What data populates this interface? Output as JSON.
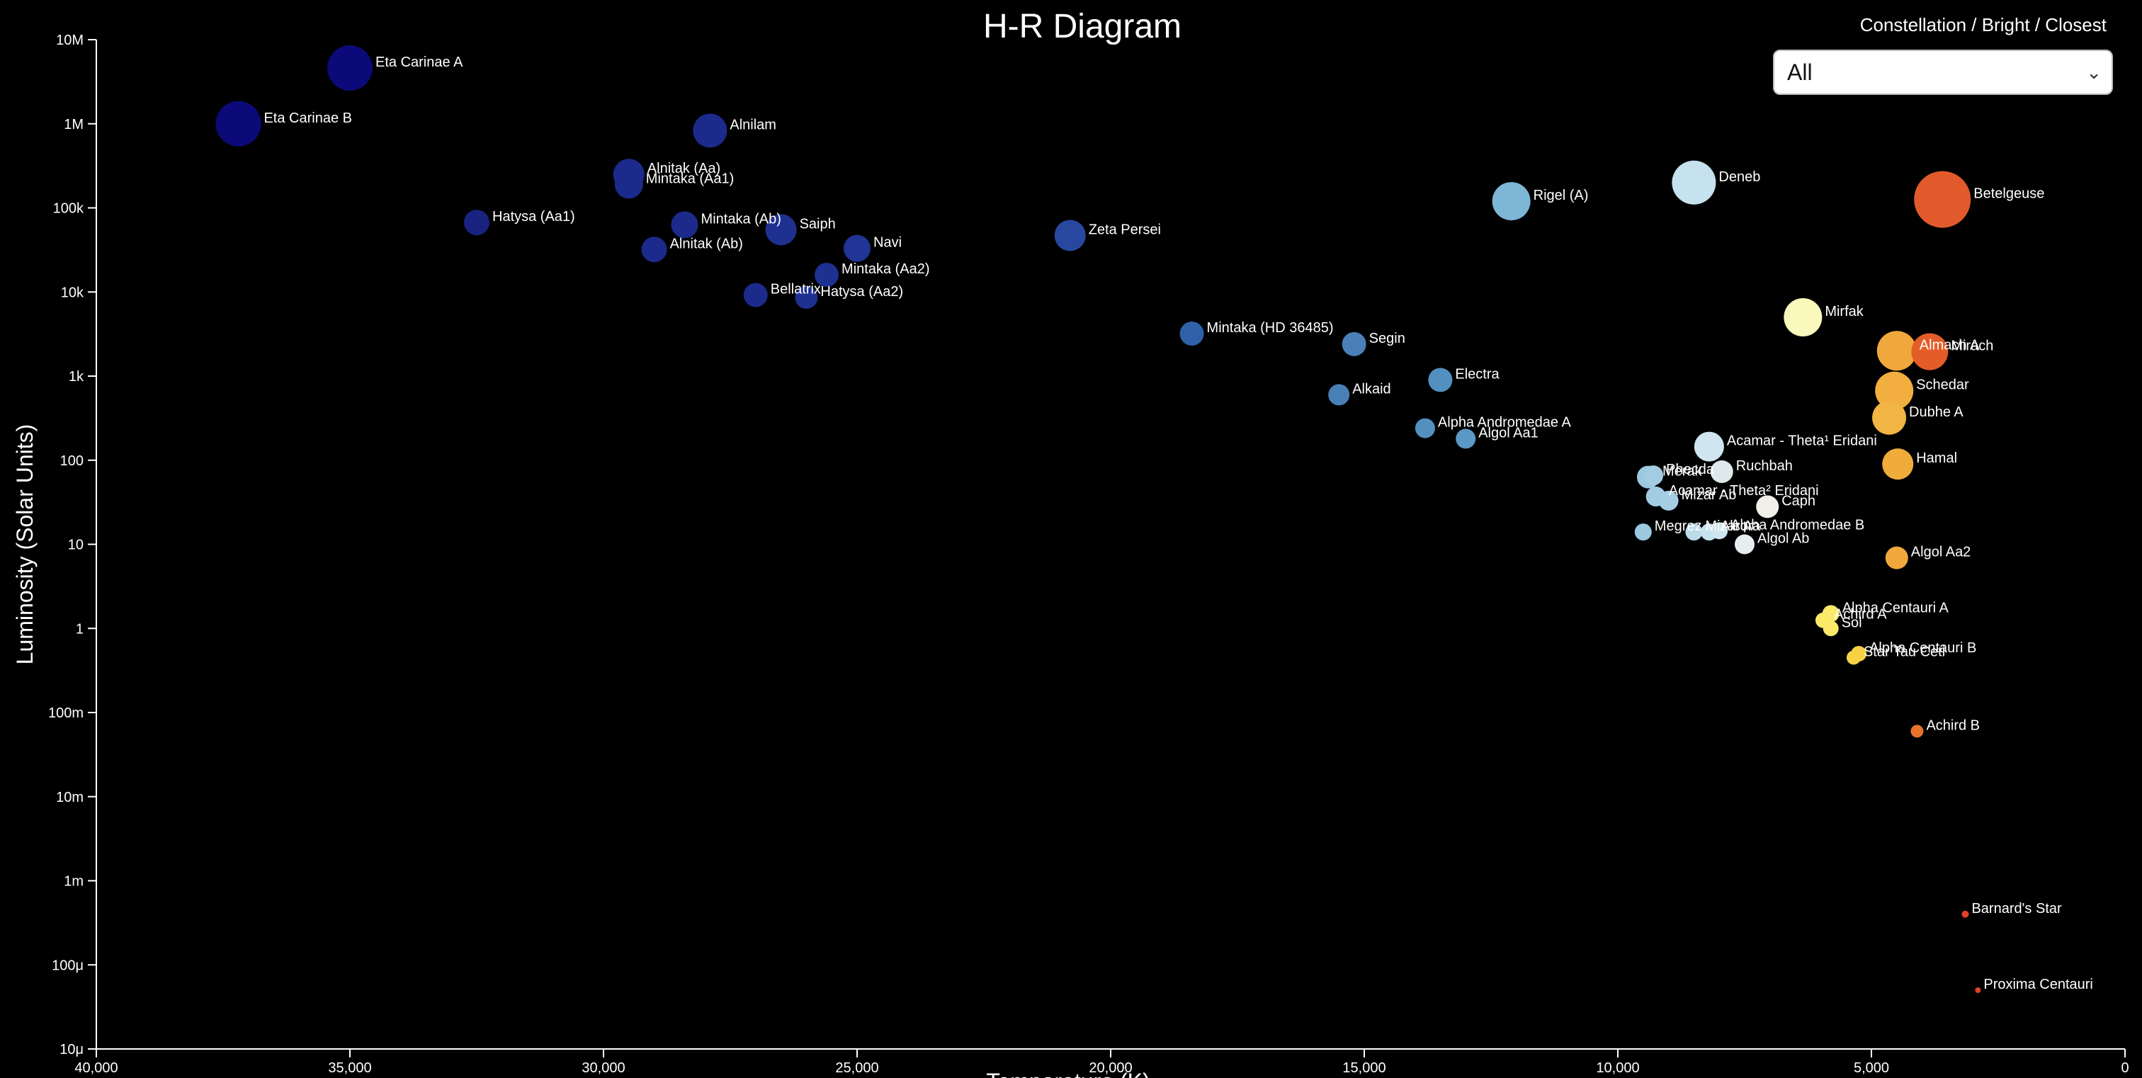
{
  "filter": {
    "label": "Constellation / Bright / Closest",
    "selected": "All"
  },
  "chart_data": {
    "type": "scatter",
    "title": "H-R Diagram",
    "xlabel": "Temperature (K)",
    "ylabel": "Luminosity (Solar Units)",
    "xlim": [
      40000,
      0
    ],
    "ylim": [
      1e-05,
      10000000
    ],
    "yscale": "log",
    "x_ticks": [
      40000,
      35000,
      30000,
      25000,
      20000,
      15000,
      10000,
      5000,
      0
    ],
    "x_tick_labels": [
      "40,000",
      "35,000",
      "30,000",
      "25,000",
      "20,000",
      "15,000",
      "10,000",
      "5,000",
      "0"
    ],
    "y_ticks": [
      1e-05,
      0.0001,
      0.001,
      0.01,
      0.1,
      1,
      10,
      100,
      1000,
      10000,
      100000,
      1000000,
      10000000
    ],
    "y_tick_labels": [
      "10μ",
      "100μ",
      "1m",
      "10m",
      "100m",
      "1",
      "10",
      "100",
      "1k",
      "10k",
      "100k",
      "1M",
      "10M"
    ],
    "grid": false,
    "legend": "none",
    "points": [
      {
        "name": "Eta Carinae A",
        "x": 35000,
        "y": 4600000,
        "size": 32,
        "color": "#0c0a78"
      },
      {
        "name": "Eta Carinae B",
        "x": 37200,
        "y": 1000000,
        "size": 32,
        "color": "#0c0a78"
      },
      {
        "name": "Alnilam",
        "x": 27900,
        "y": 830000,
        "size": 24,
        "color": "#1c2a8c"
      },
      {
        "name": "Alnitak (Aa)",
        "x": 29500,
        "y": 250000,
        "size": 22,
        "color": "#1c2a8c"
      },
      {
        "name": "Mintaka (Aa1)",
        "x": 29500,
        "y": 190000,
        "size": 20,
        "color": "#1c2a8c"
      },
      {
        "name": "Hatysa (Aa1)",
        "x": 32500,
        "y": 67000,
        "size": 18,
        "color": "#1a2280"
      },
      {
        "name": "Mintaka (Ab)",
        "x": 28400,
        "y": 63000,
        "size": 19,
        "color": "#1c2a8c"
      },
      {
        "name": "Saiph",
        "x": 26500,
        "y": 55000,
        "size": 22,
        "color": "#1e3090"
      },
      {
        "name": "Alnitak (Ab)",
        "x": 29000,
        "y": 32000,
        "size": 18,
        "color": "#1c2a8c"
      },
      {
        "name": "Navi",
        "x": 25000,
        "y": 33000,
        "size": 19,
        "color": "#213596"
      },
      {
        "name": "Zeta Persei",
        "x": 20800,
        "y": 47000,
        "size": 22,
        "color": "#2848a0"
      },
      {
        "name": "Mintaka (Aa2)",
        "x": 25600,
        "y": 16000,
        "size": 17,
        "color": "#1e3090"
      },
      {
        "name": "Bellatrix",
        "x": 27000,
        "y": 9200,
        "size": 17,
        "color": "#1c2a8c"
      },
      {
        "name": "Hatysa (Aa2)",
        "x": 26000,
        "y": 8600,
        "size": 16,
        "color": "#1e3090"
      },
      {
        "name": "Mintaka (HD 36485)",
        "x": 18400,
        "y": 3200,
        "size": 17,
        "color": "#3060a8"
      },
      {
        "name": "Segin",
        "x": 15200,
        "y": 2400,
        "size": 17,
        "color": "#4a80b8"
      },
      {
        "name": "Electra",
        "x": 13500,
        "y": 900,
        "size": 17,
        "color": "#5290c0"
      },
      {
        "name": "Alkaid",
        "x": 15500,
        "y": 600,
        "size": 15,
        "color": "#4a80b8"
      },
      {
        "name": "Alpha Andromedae A",
        "x": 13800,
        "y": 240,
        "size": 14,
        "color": "#5290c0"
      },
      {
        "name": "Algol Aa1",
        "x": 13000,
        "y": 180,
        "size": 14,
        "color": "#5a98c6"
      },
      {
        "name": "Rigel (A)",
        "x": 12100,
        "y": 120000,
        "size": 27,
        "color": "#7eb6d6"
      },
      {
        "name": "Deneb",
        "x": 8500,
        "y": 200000,
        "size": 31,
        "color": "#c6e2ee"
      },
      {
        "name": "Betelgeuse",
        "x": 3600,
        "y": 126000,
        "size": 40,
        "color": "#e25a2c"
      },
      {
        "name": "Mirfak",
        "x": 6350,
        "y": 5000,
        "size": 27,
        "color": "#fbf8bc"
      },
      {
        "name": "Almach A",
        "x": 4500,
        "y": 2000,
        "size": 28,
        "color": "#f0a83c"
      },
      {
        "name": "Mirach",
        "x": 3850,
        "y": 1950,
        "size": 26,
        "color": "#e45c28"
      },
      {
        "name": "Schedar",
        "x": 4550,
        "y": 670,
        "size": 27,
        "color": "#f2ae3e"
      },
      {
        "name": "Dubhe A",
        "x": 4650,
        "y": 320,
        "size": 24,
        "color": "#f2b442"
      },
      {
        "name": "Acamar - Theta¹ Eridani",
        "x": 8200,
        "y": 145,
        "size": 21,
        "color": "#cfe6f0"
      },
      {
        "name": "Hamal",
        "x": 4480,
        "y": 90,
        "size": 22,
        "color": "#f0ac3a"
      },
      {
        "name": "Ruchbah",
        "x": 7950,
        "y": 73,
        "size": 16,
        "color": "#dfe8ea"
      },
      {
        "name": "Merak",
        "x": 9400,
        "y": 63,
        "size": 16,
        "color": "#9cc8e0"
      },
      {
        "name": "Phecda",
        "x": 9300,
        "y": 66,
        "size": 14,
        "color": "#a2cce2"
      },
      {
        "name": "Acamar - Theta² Eridani",
        "x": 9250,
        "y": 37,
        "size": 14,
        "color": "#a2cce2"
      },
      {
        "name": "Mizar Ab",
        "x": 9000,
        "y": 33,
        "size": 14,
        "color": "#a6cee2"
      },
      {
        "name": "Caph",
        "x": 7050,
        "y": 28,
        "size": 16,
        "color": "#f0f0e8"
      },
      {
        "name": "Megrez",
        "x": 9500,
        "y": 14,
        "size": 12,
        "color": "#9cc8e0"
      },
      {
        "name": "Mizar Aa",
        "x": 8500,
        "y": 14,
        "size": 12,
        "color": "#bcdcea"
      },
      {
        "name": "Alcor",
        "x": 8200,
        "y": 14,
        "size": 12,
        "color": "#c6e2ee"
      },
      {
        "name": "Alpha Andromedae B",
        "x": 8000,
        "y": 14.5,
        "size": 12,
        "color": "#cfe6f0"
      },
      {
        "name": "Algol Ab",
        "x": 7500,
        "y": 10,
        "size": 14,
        "color": "#e6eef0"
      },
      {
        "name": "Algol Aa2",
        "x": 4500,
        "y": 6.9,
        "size": 16,
        "color": "#f0a83c"
      },
      {
        "name": "Alpha Centauri A",
        "x": 5800,
        "y": 1.5,
        "size": 12,
        "color": "#fbe96a"
      },
      {
        "name": "Achird A",
        "x": 5950,
        "y": 1.25,
        "size": 11,
        "color": "#fbe96a"
      },
      {
        "name": "Sol",
        "x": 5800,
        "y": 1.0,
        "size": 11,
        "color": "#fbe96a"
      },
      {
        "name": "Alpha Centauri B",
        "x": 5250,
        "y": 0.5,
        "size": 11,
        "color": "#f6d244"
      },
      {
        "name": "Star Tau Ceti",
        "x": 5350,
        "y": 0.45,
        "size": 10,
        "color": "#f6d244"
      },
      {
        "name": "Achird B",
        "x": 4100,
        "y": 0.06,
        "size": 9,
        "color": "#e8742c"
      },
      {
        "name": "Barnard's Star",
        "x": 3150,
        "y": 0.0004,
        "size": 5,
        "color": "#e0402a"
      },
      {
        "name": "Proxima Centauri",
        "x": 2900,
        "y": 5e-05,
        "size": 4,
        "color": "#e0402a"
      }
    ]
  }
}
